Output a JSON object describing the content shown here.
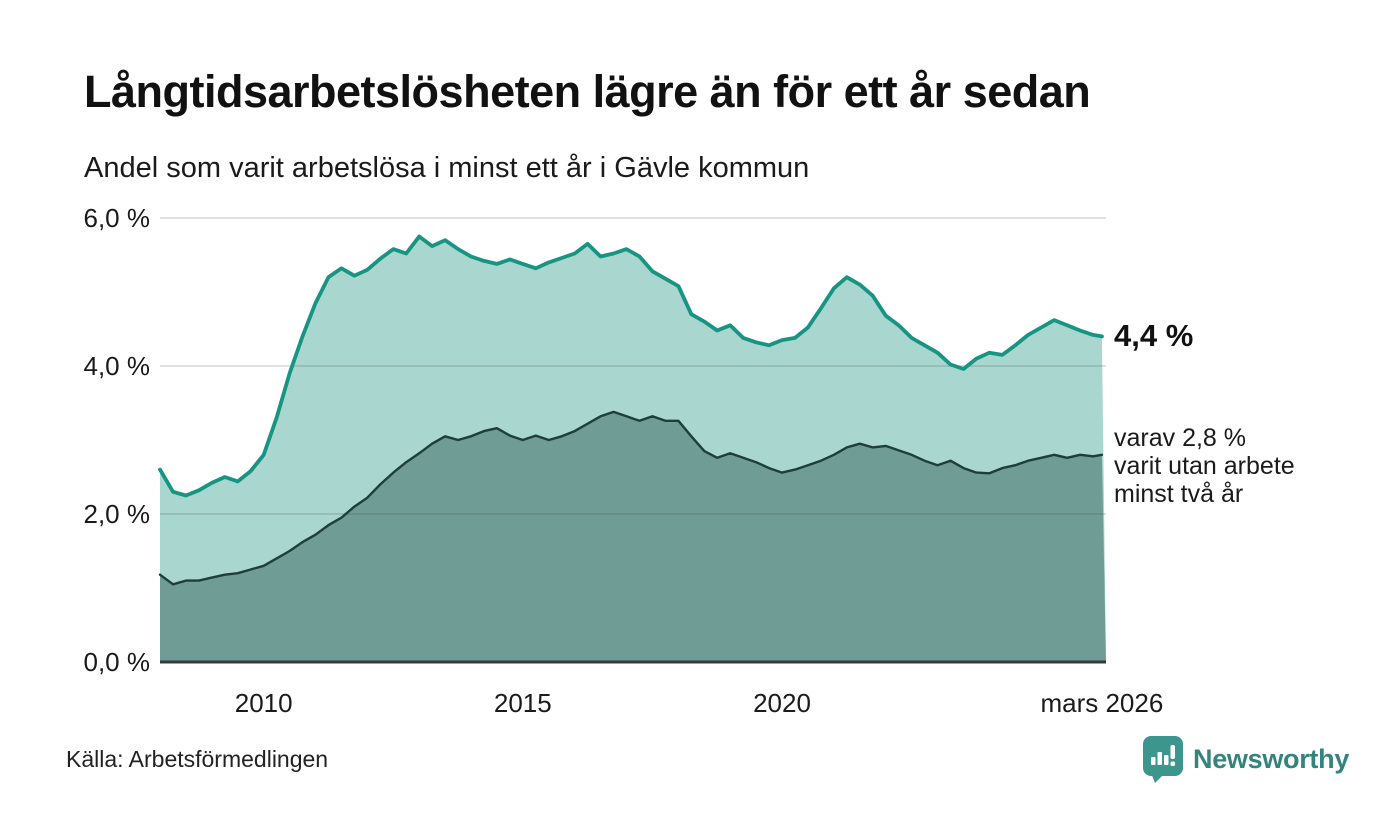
{
  "chart_data": {
    "type": "area",
    "title": "Långtidsarbetslösheten lägre än för ett år sedan",
    "subtitle": "Andel som varit arbetslösa i minst ett år i Gävle kommun",
    "source": "Källa: Arbetsförmedlingen",
    "x_unit": "year (decimal, monthly share of workforce in %)",
    "x": [
      2008,
      2008.25,
      2008.5,
      2008.75,
      2009,
      2009.25,
      2009.5,
      2009.75,
      2010,
      2010.25,
      2010.5,
      2010.75,
      2011,
      2011.25,
      2011.5,
      2011.75,
      2012,
      2012.25,
      2012.5,
      2012.75,
      2013,
      2013.25,
      2013.5,
      2013.75,
      2014,
      2014.25,
      2014.5,
      2014.75,
      2015,
      2015.25,
      2015.5,
      2015.75,
      2016,
      2016.25,
      2016.5,
      2016.75,
      2017,
      2017.25,
      2017.5,
      2017.75,
      2018,
      2018.25,
      2018.5,
      2018.75,
      2019,
      2019.25,
      2019.5,
      2019.75,
      2020,
      2020.25,
      2020.5,
      2020.75,
      2021,
      2021.25,
      2021.5,
      2021.75,
      2022,
      2022.25,
      2022.5,
      2022.75,
      2023,
      2023.25,
      2023.5,
      2023.75,
      2024,
      2024.25,
      2024.5,
      2024.75,
      2025,
      2025.25,
      2025.5,
      2025.75,
      2026,
      2026.17
    ],
    "series": [
      {
        "name": "Andel arbetslösa minst ett år",
        "end_label": "4,4 %",
        "line_color": "#189482",
        "fill_color": "#a9d6cf",
        "values": [
          2.6,
          2.3,
          2.25,
          2.32,
          2.42,
          2.5,
          2.44,
          2.58,
          2.8,
          3.3,
          3.9,
          4.4,
          4.85,
          5.2,
          5.32,
          5.22,
          5.3,
          5.45,
          5.58,
          5.52,
          5.75,
          5.62,
          5.7,
          5.58,
          5.48,
          5.42,
          5.38,
          5.44,
          5.38,
          5.32,
          5.4,
          5.46,
          5.52,
          5.65,
          5.48,
          5.52,
          5.58,
          5.48,
          5.28,
          5.18,
          5.08,
          4.7,
          4.6,
          4.48,
          4.55,
          4.38,
          4.32,
          4.28,
          4.35,
          4.38,
          4.52,
          4.78,
          5.05,
          5.2,
          5.1,
          4.95,
          4.68,
          4.55,
          4.38,
          4.28,
          4.18,
          4.02,
          3.96,
          4.1,
          4.18,
          4.15,
          4.28,
          4.42,
          4.52,
          4.62,
          4.55,
          4.48,
          4.42,
          4.4
        ]
      },
      {
        "name": "Andel arbetslösa minst två år",
        "end_label": "varav 2,8 %\nvarit utan arbete\nminst två år",
        "line_color": "#1e3e3c",
        "fill_color": "#6f9c95",
        "values": [
          1.18,
          1.05,
          1.1,
          1.1,
          1.14,
          1.18,
          1.2,
          1.25,
          1.3,
          1.4,
          1.5,
          1.62,
          1.72,
          1.85,
          1.95,
          2.1,
          2.22,
          2.4,
          2.56,
          2.7,
          2.82,
          2.95,
          3.05,
          3.0,
          3.05,
          3.12,
          3.16,
          3.06,
          3.0,
          3.06,
          3.0,
          3.05,
          3.12,
          3.22,
          3.32,
          3.38,
          3.32,
          3.26,
          3.32,
          3.26,
          3.26,
          3.05,
          2.85,
          2.76,
          2.82,
          2.76,
          2.7,
          2.62,
          2.56,
          2.6,
          2.66,
          2.72,
          2.8,
          2.9,
          2.95,
          2.9,
          2.92,
          2.86,
          2.8,
          2.72,
          2.66,
          2.72,
          2.62,
          2.56,
          2.55,
          2.62,
          2.66,
          2.72,
          2.76,
          2.8,
          2.76,
          2.8,
          2.78,
          2.8
        ]
      }
    ],
    "ylim": [
      0,
      6.3
    ],
    "yticks": [
      {
        "value": 0,
        "label": "0,0 %"
      },
      {
        "value": 2,
        "label": "2,0 %"
      },
      {
        "value": 4,
        "label": "4,0 %"
      },
      {
        "value": 6,
        "label": "6,0 %"
      }
    ],
    "xticks": [
      {
        "value": 2010,
        "label": "2010"
      },
      {
        "value": 2015,
        "label": "2015"
      },
      {
        "value": 2020,
        "label": "2020"
      },
      {
        "value": 2026.17,
        "label": "mars 2026"
      }
    ],
    "grid": true,
    "legend_position": "right-edge annotations"
  },
  "footer": {
    "brand": "Newsworthy"
  },
  "colors": {
    "background": "#ffffff",
    "grid": "#3c3c3c",
    "axis_line": "#383838",
    "tick_text": "#1a1a1a",
    "brand_teal": "#35837d",
    "logo_teal": "#3d968e"
  }
}
